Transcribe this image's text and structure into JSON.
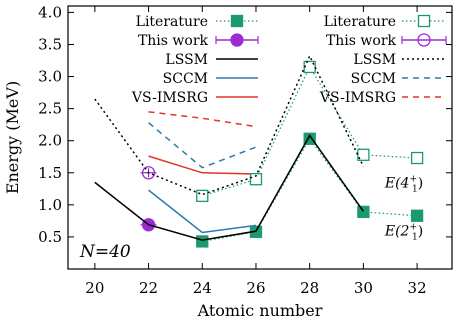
{
  "chart_data": {
    "type": "line",
    "xlabel": "Atomic number",
    "ylabel": "Energy (MeV)",
    "xlim": [
      19,
      33.3
    ],
    "ylim": [
      0,
      4.1
    ],
    "xticks": [
      20,
      22,
      24,
      26,
      28,
      30,
      32
    ],
    "yticks": [
      0.5,
      1.0,
      1.5,
      2.0,
      2.5,
      3.0,
      3.5,
      4.0
    ],
    "ytick_labels": [
      "0.5",
      "1.0",
      "1.5",
      "2.0",
      "2.5",
      "3.0",
      "3.5",
      "4.0"
    ],
    "annotation": "N=40",
    "legend_groups": [
      {
        "header_main": "E(2",
        "header_sup": "+",
        "header_sub": "1",
        "header_tail": "):"
      },
      {
        "header_main": "E(4",
        "header_sup": "+",
        "header_sub": "1",
        "header_tail": "):"
      }
    ],
    "series": [
      {
        "name": "Literature",
        "group": 0,
        "style": "lit",
        "color": "#1a9a6e",
        "x": [
          24,
          26,
          28,
          30,
          32
        ],
        "y": [
          0.43,
          0.58,
          2.03,
          0.89,
          0.83
        ]
      },
      {
        "name": "This work",
        "group": 0,
        "style": "this",
        "color": "#9c2bd1",
        "x": [
          22
        ],
        "y": [
          0.69
        ],
        "err": [
          0.03
        ]
      },
      {
        "name": "LSSM",
        "group": 0,
        "style": "solid",
        "color": "#000000",
        "x": [
          20,
          22,
          24,
          26,
          28,
          30
        ],
        "y": [
          1.35,
          0.69,
          0.45,
          0.59,
          2.08,
          0.9
        ]
      },
      {
        "name": "SCCM",
        "group": 0,
        "style": "solid",
        "color": "#2a7ab0",
        "x": [
          22,
          24,
          26
        ],
        "y": [
          1.23,
          0.57,
          0.68
        ]
      },
      {
        "name": "VS-IMSRG",
        "group": 0,
        "style": "solid",
        "color": "#e0352b",
        "x": [
          22,
          24,
          26
        ],
        "y": [
          1.76,
          1.5,
          1.48
        ]
      },
      {
        "name": "Literature",
        "group": 1,
        "style": "lit",
        "color": "#1a9a6e",
        "x": [
          24,
          26,
          28,
          30,
          32
        ],
        "y": [
          1.14,
          1.4,
          3.15,
          1.78,
          1.73
        ]
      },
      {
        "name": "This work",
        "group": 1,
        "style": "this",
        "color": "#9c2bd1",
        "x": [
          22
        ],
        "y": [
          1.5
        ],
        "err": [
          0.07
        ]
      },
      {
        "name": "LSSM",
        "group": 1,
        "style": "dotted",
        "color": "#000000",
        "x": [
          20,
          22,
          24,
          26,
          28,
          30
        ],
        "y": [
          2.65,
          1.5,
          1.16,
          1.45,
          3.32,
          1.6
        ]
      },
      {
        "name": "SCCM",
        "group": 1,
        "style": "dashed",
        "color": "#2a7ab0",
        "x": [
          22,
          24,
          26
        ],
        "y": [
          2.28,
          1.58,
          1.9
        ]
      },
      {
        "name": "VS-IMSRG",
        "group": 1,
        "style": "dashed",
        "color": "#e0352b",
        "x": [
          22,
          24,
          26
        ],
        "y": [
          2.45,
          2.35,
          2.22
        ]
      }
    ],
    "series_labels": [
      {
        "main": "E(4",
        "sup": "+",
        "sub": "1",
        "tail": ")",
        "x": 30.8,
        "y": 1.27
      },
      {
        "main": "E(2",
        "sup": "+",
        "sub": "1",
        "tail": ")",
        "x": 30.8,
        "y": 0.52
      }
    ]
  }
}
